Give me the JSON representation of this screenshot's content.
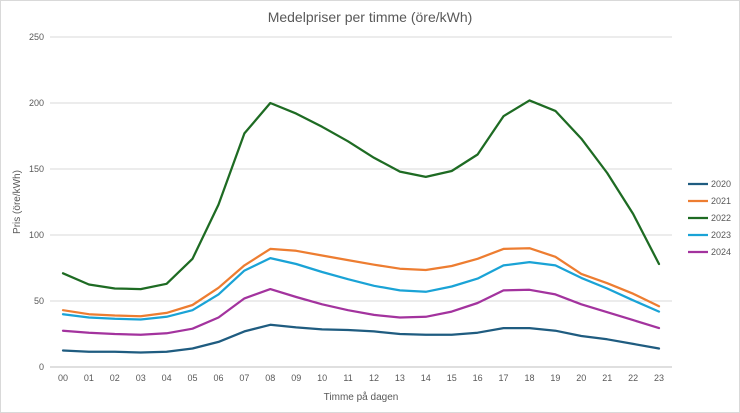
{
  "chart_data": {
    "type": "line",
    "title": "Medelpriser per timme (öre/kWh)",
    "xlabel": "Timme på dagen",
    "ylabel": "Pris (öre/kWh)",
    "ylim": [
      0,
      250
    ],
    "yticks": [
      "0",
      "50",
      "100",
      "150",
      "200",
      "250"
    ],
    "grid": "horizontal",
    "legend_position": "right",
    "categories": [
      "00",
      "01",
      "02",
      "03",
      "04",
      "05",
      "06",
      "07",
      "08",
      "09",
      "10",
      "11",
      "12",
      "13",
      "14",
      "15",
      "16",
      "17",
      "18",
      "19",
      "20",
      "21",
      "22",
      "23"
    ],
    "series": [
      {
        "name": "2020",
        "color": "#1f5c80",
        "values": [
          12.5,
          11.5,
          11.5,
          11,
          11.5,
          14,
          19,
          27,
          32,
          30,
          28.5,
          28,
          27,
          25,
          24.5,
          24.5,
          26,
          29.5,
          29.5,
          27.5,
          23.5,
          21,
          17.5,
          14
        ]
      },
      {
        "name": "2021",
        "color": "#ed7d31",
        "values": [
          43,
          40,
          39,
          38.5,
          41,
          47,
          60,
          77,
          89.5,
          88,
          84.5,
          81,
          77.5,
          74.5,
          73.5,
          76.5,
          82,
          89.5,
          90,
          83.5,
          70.5,
          63.5,
          55.5,
          46
        ]
      },
      {
        "name": "2022",
        "color": "#1e6b23",
        "values": [
          71,
          62.5,
          59.5,
          59,
          63,
          82,
          123,
          177,
          200,
          192,
          182,
          171,
          158.5,
          148,
          144,
          148.5,
          161,
          190,
          202,
          194,
          173,
          147,
          116,
          78
        ]
      },
      {
        "name": "2023",
        "color": "#1aa3d6",
        "values": [
          40,
          37.5,
          36.5,
          36,
          38,
          43,
          55,
          73,
          82.5,
          78,
          72,
          66.5,
          61.5,
          58,
          57,
          61,
          67,
          77,
          79.5,
          77,
          67.5,
          59.5,
          50.5,
          42
        ]
      },
      {
        "name": "2024",
        "color": "#a3339e",
        "values": [
          27.5,
          26,
          25,
          24.5,
          25.5,
          29,
          37.5,
          52,
          59,
          53,
          47.5,
          43,
          39.5,
          37.5,
          38,
          42,
          48.5,
          58,
          58.5,
          55,
          47.5,
          41.5,
          35.5,
          29.5
        ]
      }
    ]
  }
}
